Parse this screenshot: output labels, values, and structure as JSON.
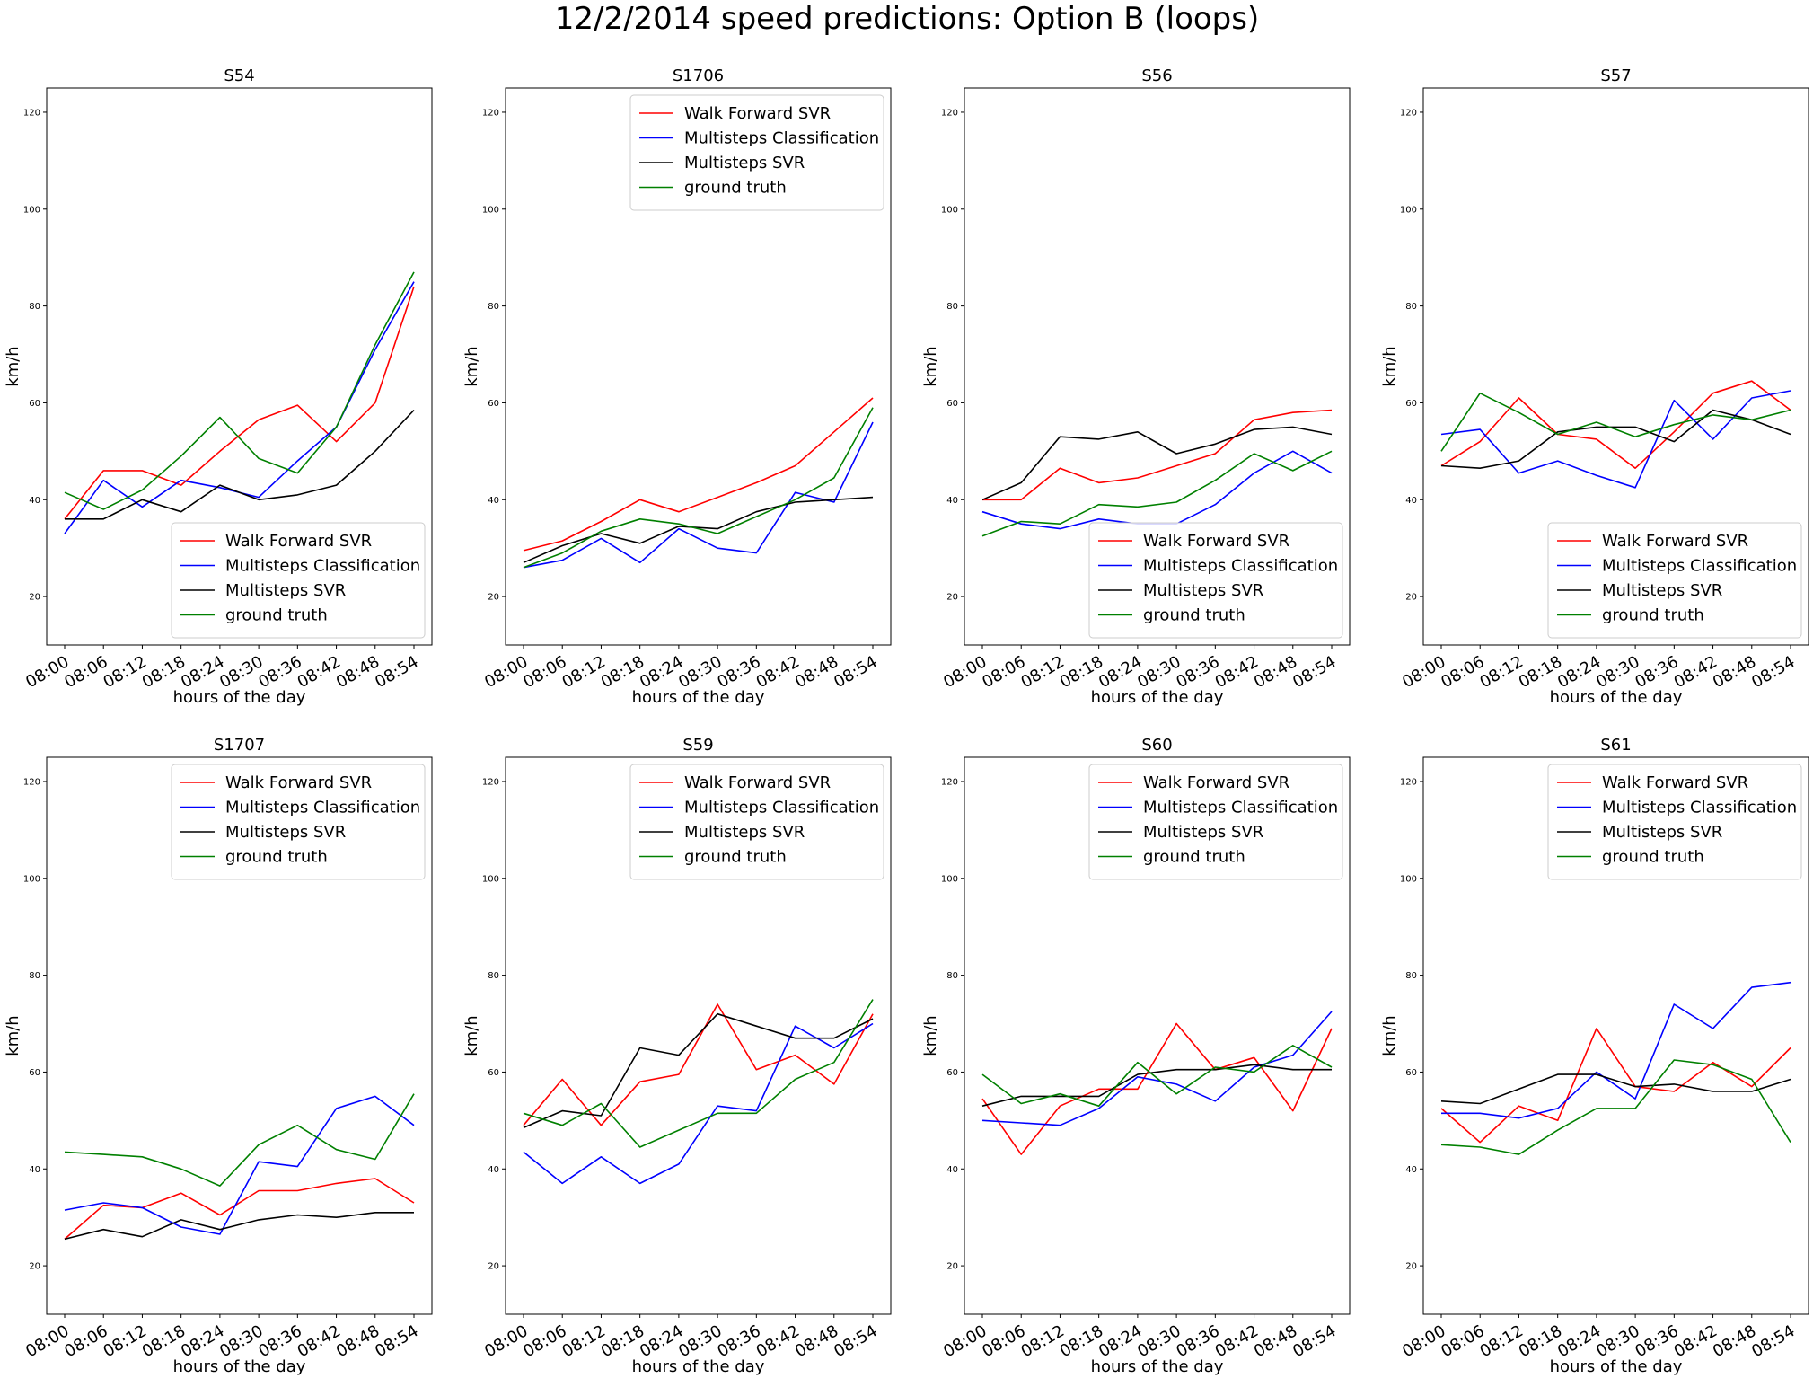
{
  "title": "12/2/2014 speed predictions: Option B (loops)",
  "colors": {
    "Walk Forward SVR": "#ff0000",
    "Multisteps Classification": "#0000ff",
    "Multisteps SVR": "#000000",
    "ground truth": "#008000"
  },
  "chart_data": [
    {
      "type": "line",
      "title": "S54",
      "xlabel": "hours of the day",
      "ylabel": "km/h",
      "x": [
        "08:00",
        "08:06",
        "08:12",
        "08:18",
        "08:24",
        "08:30",
        "08:36",
        "08:42",
        "08:48",
        "08:54"
      ],
      "ylim": [
        10,
        125
      ],
      "yticks": [
        20,
        40,
        60,
        80,
        100,
        120
      ],
      "legend": "lower-right",
      "series": [
        {
          "name": "Walk Forward SVR",
          "color": "#ff0000",
          "values": [
            36,
            46,
            46,
            43,
            50,
            56.5,
            59.5,
            52,
            60,
            84
          ]
        },
        {
          "name": "Multisteps Classification",
          "color": "#0000ff",
          "values": [
            33,
            44,
            38.5,
            44,
            42.5,
            40.5,
            48,
            55,
            71,
            85
          ]
        },
        {
          "name": "Multisteps SVR",
          "color": "#000000",
          "values": [
            36,
            36,
            40,
            37.5,
            43,
            40,
            41,
            43,
            50,
            58.5
          ]
        },
        {
          "name": "ground truth",
          "color": "#008000",
          "values": [
            41.5,
            38,
            42,
            49,
            57,
            48.5,
            45.5,
            55,
            72,
            87
          ]
        }
      ]
    },
    {
      "type": "line",
      "title": "S1706",
      "xlabel": "hours of the day",
      "ylabel": "km/h",
      "x": [
        "08:00",
        "08:06",
        "08:12",
        "08:18",
        "08:24",
        "08:30",
        "08:36",
        "08:42",
        "08:48",
        "08:54"
      ],
      "ylim": [
        10,
        125
      ],
      "yticks": [
        20,
        40,
        60,
        80,
        100,
        120
      ],
      "legend": "upper-right",
      "series": [
        {
          "name": "Walk Forward SVR",
          "color": "#ff0000",
          "values": [
            29.5,
            31.5,
            35.5,
            40,
            37.5,
            40.5,
            43.5,
            47,
            54,
            61
          ]
        },
        {
          "name": "Multisteps Classification",
          "color": "#0000ff",
          "values": [
            26,
            27.5,
            32,
            27,
            34,
            30,
            29,
            41.5,
            39.5,
            56
          ]
        },
        {
          "name": "Multisteps SVR",
          "color": "#000000",
          "values": [
            27,
            30.5,
            33,
            31,
            34.5,
            34,
            37.5,
            39.5,
            40,
            40.5
          ]
        },
        {
          "name": "ground truth",
          "color": "#008000",
          "values": [
            26,
            29,
            33.5,
            36,
            35,
            33,
            36.5,
            40,
            44.5,
            59
          ]
        }
      ]
    },
    {
      "type": "line",
      "title": "S56",
      "xlabel": "hours of the day",
      "ylabel": "km/h",
      "x": [
        "08:00",
        "08:06",
        "08:12",
        "08:18",
        "08:24",
        "08:30",
        "08:36",
        "08:42",
        "08:48",
        "08:54"
      ],
      "ylim": [
        10,
        125
      ],
      "yticks": [
        20,
        40,
        60,
        80,
        100,
        120
      ],
      "legend": "lower-right",
      "series": [
        {
          "name": "Walk Forward SVR",
          "color": "#ff0000",
          "values": [
            40,
            40,
            46.5,
            43.5,
            44.5,
            47,
            49.5,
            56.5,
            58,
            58.5
          ]
        },
        {
          "name": "Multisteps Classification",
          "color": "#0000ff",
          "values": [
            37.5,
            35,
            34,
            36,
            35,
            35,
            39,
            45.5,
            50,
            45.5
          ]
        },
        {
          "name": "Multisteps SVR",
          "color": "#000000",
          "values": [
            40,
            43.5,
            53,
            52.5,
            54,
            49.5,
            51.5,
            54.5,
            55,
            53.5
          ]
        },
        {
          "name": "ground truth",
          "color": "#008000",
          "values": [
            32.5,
            35.5,
            35,
            39,
            38.5,
            39.5,
            44,
            49.5,
            46,
            50
          ]
        }
      ]
    },
    {
      "type": "line",
      "title": "S57",
      "xlabel": "hours of the day",
      "ylabel": "km/h",
      "x": [
        "08:00",
        "08:06",
        "08:12",
        "08:18",
        "08:24",
        "08:30",
        "08:36",
        "08:42",
        "08:48",
        "08:54"
      ],
      "ylim": [
        10,
        125
      ],
      "yticks": [
        20,
        40,
        60,
        80,
        100,
        120
      ],
      "legend": "lower-right",
      "series": [
        {
          "name": " Walk Forward SVR",
          "color": "#ff0000",
          "values": [
            47,
            52,
            61,
            53.5,
            52.5,
            46.5,
            54,
            62,
            64.5,
            58.5
          ]
        },
        {
          "name": "Multisteps Classification",
          "color": "#0000ff",
          "values": [
            53.5,
            54.5,
            45.5,
            48,
            45,
            42.5,
            60.5,
            52.5,
            61,
            62.5
          ]
        },
        {
          "name": "Multisteps SVR",
          "color": "#000000",
          "values": [
            47,
            46.5,
            48,
            54,
            55,
            55,
            52,
            58.5,
            56.5,
            53.5
          ]
        },
        {
          "name": "ground truth",
          "color": "#008000",
          "values": [
            50,
            62,
            58,
            53.5,
            56,
            53,
            55.5,
            57.5,
            56.5,
            58.5
          ]
        }
      ]
    },
    {
      "type": "line",
      "title": "S1707",
      "xlabel": "hours of the day",
      "ylabel": "km/h",
      "x": [
        "08:00",
        "08:06",
        "08:12",
        "08:18",
        "08:24",
        "08:30",
        "08:36",
        "08:42",
        "08:48",
        "08:54"
      ],
      "ylim": [
        10,
        125
      ],
      "yticks": [
        20,
        40,
        60,
        80,
        100,
        120
      ],
      "legend": "upper-right",
      "series": [
        {
          "name": "Walk Forward SVR",
          "color": "#ff0000",
          "values": [
            25.5,
            32.5,
            32,
            35,
            30.5,
            35.5,
            35.5,
            37,
            38,
            33
          ]
        },
        {
          "name": "Multisteps Classification",
          "color": "#0000ff",
          "values": [
            31.5,
            33,
            32,
            28,
            26.5,
            41.5,
            40.5,
            52.5,
            55,
            49
          ]
        },
        {
          "name": "Multisteps SVR",
          "color": "#000000",
          "values": [
            25.5,
            27.5,
            26,
            29.5,
            27.5,
            29.5,
            30.5,
            30,
            31,
            31
          ]
        },
        {
          "name": "ground truth",
          "color": "#008000",
          "values": [
            43.5,
            43,
            42.5,
            40,
            36.5,
            45,
            49,
            44,
            42,
            55.5
          ]
        }
      ]
    },
    {
      "type": "line",
      "title": "S59",
      "xlabel": "hours of the day",
      "ylabel": "km/h",
      "x": [
        "08:00",
        "08:06",
        "08:12",
        "08:18",
        "08:24",
        "08:30",
        "08:36",
        "08:42",
        "08:48",
        "08:54"
      ],
      "ylim": [
        10,
        125
      ],
      "yticks": [
        20,
        40,
        60,
        80,
        100,
        120
      ],
      "legend": "upper-right",
      "series": [
        {
          "name": "Walk Forward SVR",
          "color": "#ff0000",
          "values": [
            49,
            58.5,
            49,
            58,
            59.5,
            74,
            60.5,
            63.5,
            57.5,
            72
          ]
        },
        {
          "name": "Multisteps Classification",
          "color": "#0000ff",
          "values": [
            43.5,
            37,
            42.5,
            37,
            41,
            53,
            52,
            69.5,
            65,
            70
          ]
        },
        {
          "name": "Multisteps SVR",
          "color": "#000000",
          "values": [
            48.5,
            52,
            51,
            65,
            63.5,
            72,
            69.5,
            67,
            67,
            71
          ]
        },
        {
          "name": "ground truth",
          "color": "#008000",
          "values": [
            51.5,
            49,
            53.5,
            44.5,
            48,
            51.5,
            51.5,
            58.5,
            62,
            75
          ]
        }
      ]
    },
    {
      "type": "line",
      "title": "S60",
      "xlabel": "hours of the day",
      "ylabel": "km/h",
      "x": [
        "08:00",
        "08:06",
        "08:12",
        "08:18",
        "08:24",
        "08:30",
        "08:36",
        "08:42",
        "08:48",
        "08:54"
      ],
      "ylim": [
        10,
        125
      ],
      "yticks": [
        20,
        40,
        60,
        80,
        100,
        120
      ],
      "legend": "upper-right",
      "series": [
        {
          "name": "Walk Forward SVR",
          "color": "#ff0000",
          "values": [
            54.5,
            43,
            53,
            56.5,
            56.5,
            70,
            60.5,
            63,
            52,
            69
          ]
        },
        {
          "name": "Multisteps Classification",
          "color": "#0000ff",
          "values": [
            50,
            49.5,
            49,
            52.5,
            59,
            57.5,
            54,
            61,
            63.5,
            72.5
          ]
        },
        {
          "name": "Multisteps SVR",
          "color": "#000000",
          "values": [
            53,
            55,
            55,
            55,
            59.5,
            60.5,
            60.5,
            61.5,
            60.5,
            60.5
          ]
        },
        {
          "name": "ground truth",
          "color": "#008000",
          "values": [
            59.5,
            53.5,
            55.5,
            53,
            62,
            55.5,
            61,
            60,
            65.5,
            61
          ]
        }
      ]
    },
    {
      "type": "line",
      "title": "S61",
      "xlabel": "hours of the day",
      "ylabel": "km/h",
      "x": [
        "08:00",
        "08:06",
        "08:12",
        "08:18",
        "08:24",
        "08:30",
        "08:36",
        "08:42",
        "08:48",
        "08:54"
      ],
      "ylim": [
        10,
        125
      ],
      "yticks": [
        20,
        40,
        60,
        80,
        100,
        120
      ],
      "legend": "upper-right",
      "series": [
        {
          "name": "Walk Forward SVR",
          "color": "#ff0000",
          "values": [
            52.5,
            45.5,
            53,
            50,
            69,
            57,
            56,
            62,
            57,
            65
          ]
        },
        {
          "name": "Multisteps Classification",
          "color": "#0000ff",
          "values": [
            51.5,
            51.5,
            50.5,
            52.5,
            60,
            54.5,
            74,
            69,
            77.5,
            78.5
          ]
        },
        {
          "name": "Multisteps SVR",
          "color": "#000000",
          "values": [
            54,
            53.5,
            56.5,
            59.5,
            59.5,
            57,
            57.5,
            56,
            56,
            58.5
          ]
        },
        {
          "name": "ground truth",
          "color": "#008000",
          "values": [
            45,
            44.5,
            43,
            48,
            52.5,
            52.5,
            62.5,
            61.5,
            58.5,
            45.5
          ]
        }
      ]
    }
  ]
}
